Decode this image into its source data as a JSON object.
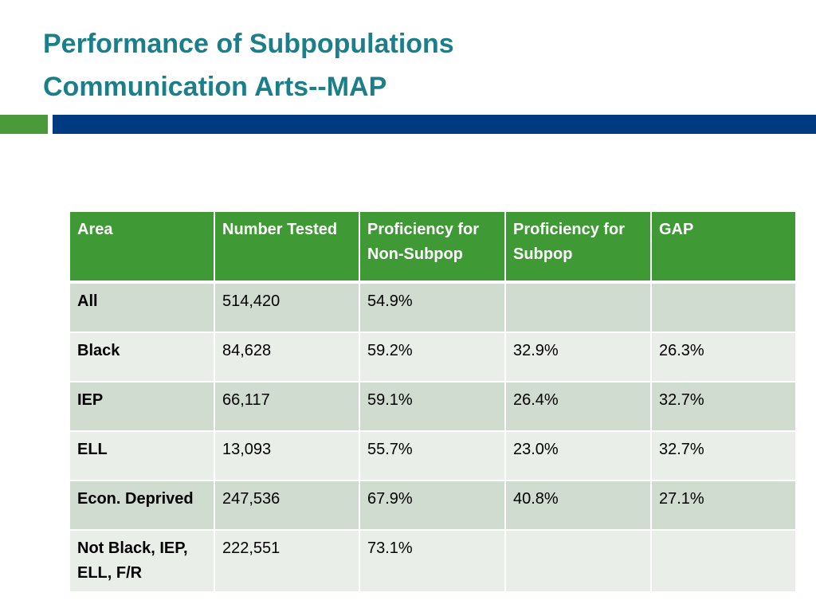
{
  "slide": {
    "title_line1": "Performance of Subpopulations",
    "title_line2": "Communication Arts--MAP",
    "accent_colors": {
      "green": "#4b9a3a",
      "blue": "#003a80",
      "title": "#1b7f8a"
    }
  },
  "table": {
    "headers": [
      "Area",
      "Number Tested",
      "Proficiency for Non-Subpop",
      "Proficiency for Subpop",
      "GAP"
    ],
    "rows": [
      [
        "All",
        "514,420",
        "54.9%",
        "",
        ""
      ],
      [
        "Black",
        "84,628",
        "59.2%",
        "32.9%",
        "26.3%"
      ],
      [
        "IEP",
        "66,117",
        "59.1%",
        "26.4%",
        "32.7%"
      ],
      [
        "ELL",
        "13,093",
        "55.7%",
        "23.0%",
        "32.7%"
      ],
      [
        "Econ. Deprived",
        "247,536",
        "67.9%",
        "40.8%",
        "27.1%"
      ],
      [
        "Not Black, IEP, ELL, F/R",
        "222,551",
        "73.1%",
        "",
        ""
      ]
    ]
  }
}
